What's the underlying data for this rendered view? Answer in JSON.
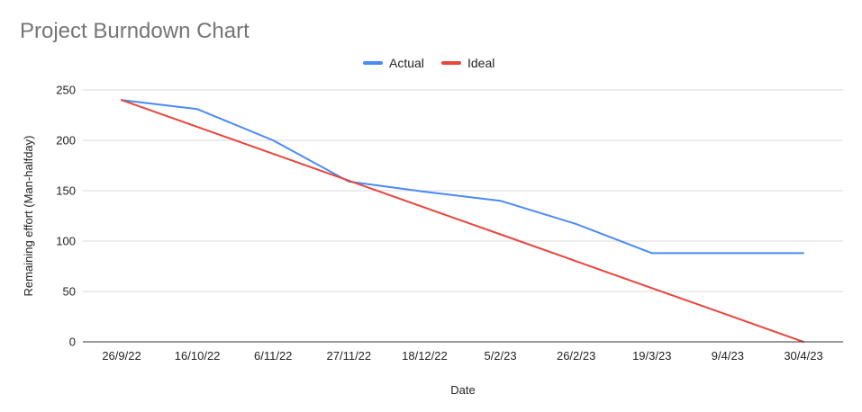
{
  "chart_data": {
    "type": "line",
    "title": "Project Burndown Chart",
    "xlabel": "Date",
    "ylabel": "Remaining effort (Man-halfday)",
    "categories": [
      "26/9/22",
      "16/10/22",
      "6/11/22",
      "27/11/22",
      "18/12/22",
      "5/2/23",
      "26/2/23",
      "19/3/23",
      "9/4/23",
      "30/4/23"
    ],
    "ylim": [
      0,
      250
    ],
    "yticks": [
      0,
      50,
      100,
      150,
      200,
      250
    ],
    "grid": true,
    "legend_position": "top-center",
    "series": [
      {
        "name": "Actual",
        "color": "#4a8af4",
        "values": [
          240,
          231,
          200,
          159,
          149,
          140,
          117,
          88,
          88,
          88
        ]
      },
      {
        "name": "Ideal",
        "color": "#e8453c",
        "values": [
          240,
          213.3,
          186.7,
          160,
          133.3,
          106.7,
          80,
          53.3,
          26.7,
          0
        ]
      }
    ]
  }
}
